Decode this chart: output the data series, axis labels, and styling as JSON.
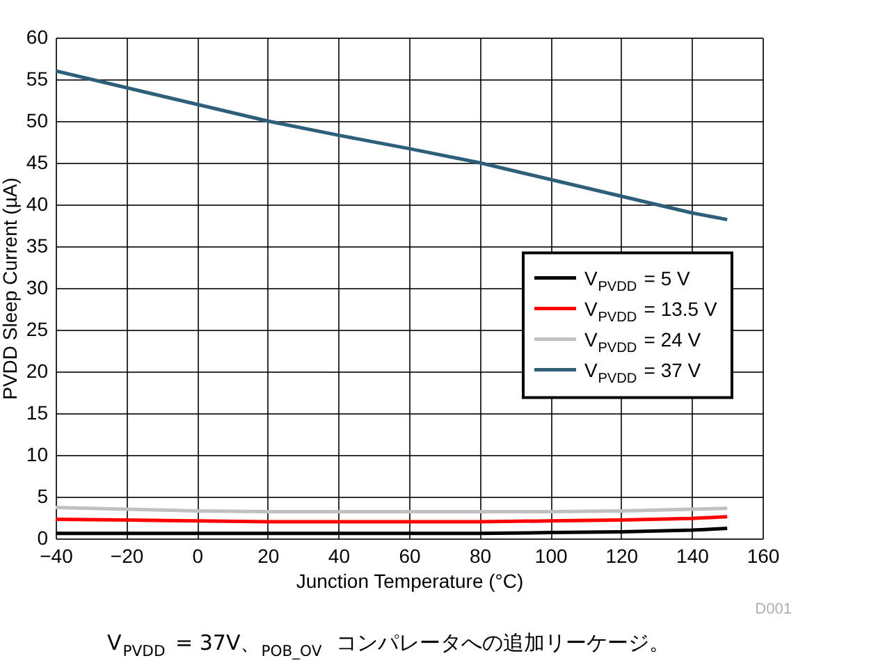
{
  "chart_data": {
    "type": "line",
    "xlabel": "Junction Temperature (°C)",
    "ylabel": "PVDD Sleep Current (µA)",
    "x": [
      -40,
      -20,
      0,
      20,
      40,
      60,
      80,
      100,
      120,
      140,
      150
    ],
    "series": [
      {
        "name": "V$_{PVDD}$ = 5 V",
        "color": "#000000",
        "values": [
          0.6,
          0.6,
          0.6,
          0.6,
          0.6,
          0.6,
          0.6,
          0.7,
          0.8,
          1.0,
          1.2
        ]
      },
      {
        "name": "V$_{PVDD}$ = 13.5 V",
        "color": "#ff0000",
        "values": [
          2.3,
          2.2,
          2.1,
          2.0,
          2.0,
          2.0,
          2.0,
          2.1,
          2.2,
          2.4,
          2.6
        ]
      },
      {
        "name": "V$_{PVDD}$ = 24 V",
        "color": "#c0c0c0",
        "values": [
          3.7,
          3.5,
          3.3,
          3.2,
          3.2,
          3.2,
          3.2,
          3.2,
          3.3,
          3.5,
          3.6
        ]
      },
      {
        "name": "V$_{PVDD}$ = 37 V",
        "color": "#2e5f7a",
        "values": [
          56,
          54,
          52,
          50,
          48.3,
          46.7,
          45,
          43,
          41,
          39,
          38.2
        ]
      }
    ],
    "xlim": [
      -40,
      160
    ],
    "xticks": [
      -40,
      -20,
      0,
      20,
      40,
      60,
      80,
      100,
      120,
      140,
      160
    ],
    "ylim": [
      0,
      60
    ],
    "yticks": [
      0,
      5,
      10,
      15,
      20,
      25,
      30,
      35,
      40,
      45,
      50,
      55,
      60
    ],
    "grid": true,
    "legend": "right",
    "marker": "none",
    "line_style": "solid",
    "annotations": [
      "D001",
      "V$_{PVDD}$ = 37V、$_{POB_OV}$ コンパレータへの追加リーケージ。"
    ]
  }
}
